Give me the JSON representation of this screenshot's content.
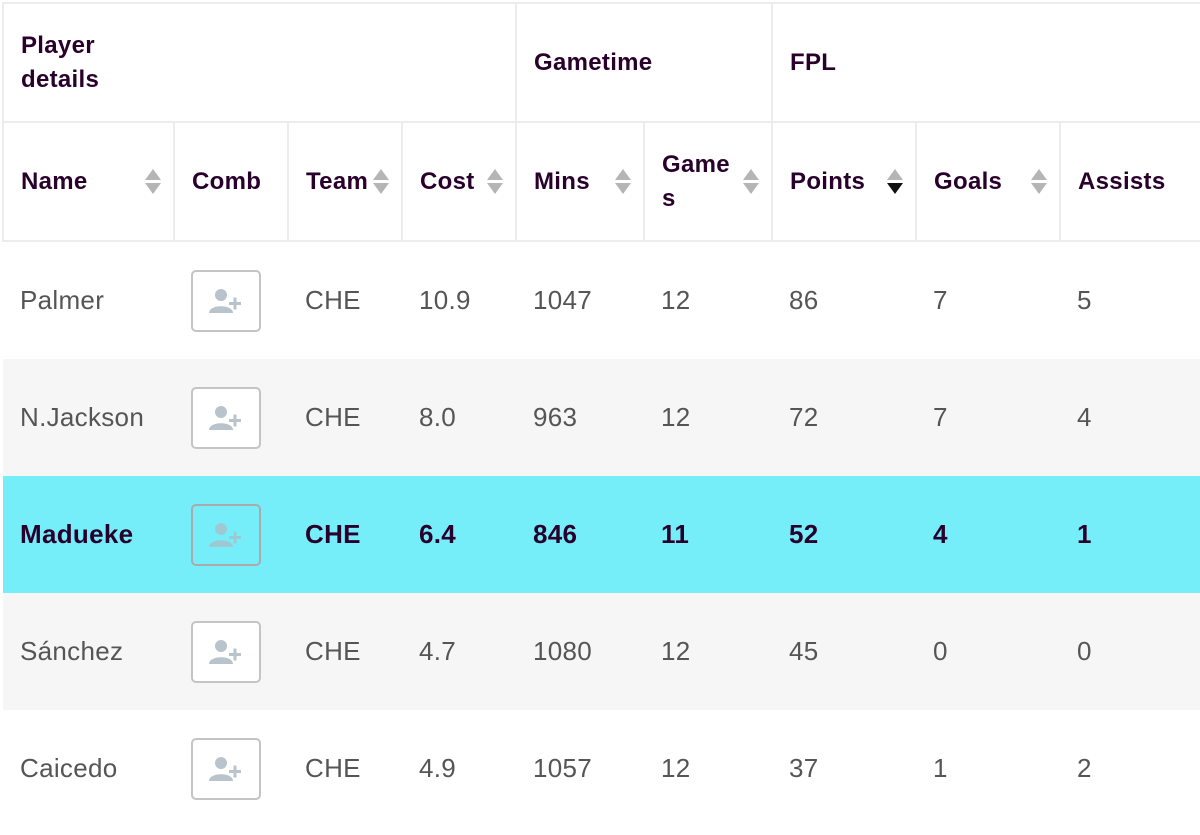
{
  "table": {
    "groups": {
      "player_details": "Player details",
      "gametime": "Gametime",
      "fpl": "FPL"
    },
    "columns": {
      "name": "Name",
      "comb": "Comb",
      "team": "Team",
      "cost": "Cost",
      "mins": "Mins",
      "games": "Games",
      "points": "Points",
      "goals": "Goals",
      "assists": "Assists"
    },
    "sort": {
      "column": "points",
      "direction": "descending"
    },
    "rows": [
      {
        "name": "Palmer",
        "comb_icon": "add-user-icon",
        "team": "CHE",
        "cost": "10.9",
        "mins": "1047",
        "games": "12",
        "points": "86",
        "goals": "7",
        "assists": "5"
      },
      {
        "name": "N.Jackson",
        "comb_icon": "add-user-icon",
        "team": "CHE",
        "cost": "8.0",
        "mins": "963",
        "games": "12",
        "points": "72",
        "goals": "7",
        "assists": "4"
      },
      {
        "name": "Madueke",
        "comb_icon": "add-user-icon",
        "team": "CHE",
        "cost": "6.4",
        "mins": "846",
        "games": "11",
        "points": "52",
        "goals": "4",
        "assists": "1",
        "highlighted": true
      },
      {
        "name": "Sánchez",
        "comb_icon": "add-user-icon",
        "team": "CHE",
        "cost": "4.7",
        "mins": "1080",
        "games": "12",
        "points": "45",
        "goals": "0",
        "assists": "0"
      },
      {
        "name": "Caicedo",
        "comb_icon": "add-user-icon",
        "team": "CHE",
        "cost": "4.9",
        "mins": "1057",
        "games": "12",
        "points": "37",
        "goals": "1",
        "assists": "2"
      }
    ]
  },
  "colors": {
    "highlight_row": "#76eefa",
    "alt_row": "#f6f6f6",
    "header_text": "#29002c",
    "body_text": "#555555"
  }
}
